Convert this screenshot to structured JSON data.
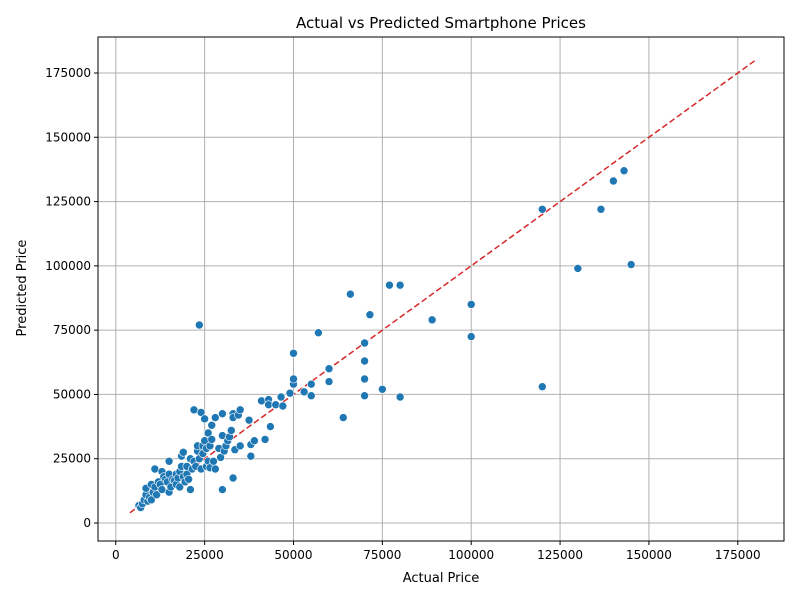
{
  "chart_data": {
    "type": "scatter",
    "title": "Actual vs Predicted Smartphone Prices",
    "xlabel": "Actual Price",
    "ylabel": "Predicted Price",
    "xlim": [
      -5000,
      188000
    ],
    "ylim": [
      -7000,
      189000
    ],
    "xticks": [
      0,
      25000,
      50000,
      75000,
      100000,
      125000,
      150000,
      175000
    ],
    "yticks": [
      0,
      25000,
      50000,
      75000,
      100000,
      125000,
      150000,
      175000
    ],
    "grid": true,
    "point_color": "#1f77b4",
    "reference_line": {
      "x": [
        4000,
        180000
      ],
      "y": [
        4000,
        180000
      ],
      "color": "#d62728",
      "style": "dashed"
    },
    "points": [
      [
        6500,
        6800
      ],
      [
        7000,
        6000
      ],
      [
        7500,
        7500
      ],
      [
        8000,
        9000
      ],
      [
        8500,
        11000
      ],
      [
        8500,
        13500
      ],
      [
        9000,
        8500
      ],
      [
        9500,
        10000
      ],
      [
        10000,
        15000
      ],
      [
        10000,
        9000
      ],
      [
        10500,
        12000
      ],
      [
        11000,
        21000
      ],
      [
        11000,
        14000
      ],
      [
        11500,
        11000
      ],
      [
        12000,
        16000
      ],
      [
        12500,
        15000
      ],
      [
        13000,
        20000
      ],
      [
        13000,
        13000
      ],
      [
        13500,
        18000
      ],
      [
        14000,
        17000
      ],
      [
        14500,
        16000
      ],
      [
        15000,
        24000
      ],
      [
        15000,
        12000
      ],
      [
        15000,
        19000
      ],
      [
        15500,
        14000
      ],
      [
        16000,
        17000
      ],
      [
        16500,
        16500
      ],
      [
        17000,
        19000
      ],
      [
        17000,
        15000
      ],
      [
        17500,
        17500
      ],
      [
        18000,
        20000
      ],
      [
        18000,
        14000
      ],
      [
        18500,
        26000
      ],
      [
        18500,
        22000
      ],
      [
        19000,
        27500
      ],
      [
        19000,
        18000
      ],
      [
        19500,
        16000
      ],
      [
        20000,
        22000
      ],
      [
        20000,
        19000
      ],
      [
        20500,
        17000
      ],
      [
        21000,
        25000
      ],
      [
        21000,
        13000
      ],
      [
        21500,
        21000
      ],
      [
        22000,
        44000
      ],
      [
        22000,
        24000
      ],
      [
        22500,
        22000
      ],
      [
        23000,
        28000
      ],
      [
        23000,
        30000
      ],
      [
        23500,
        77000
      ],
      [
        23500,
        25000
      ],
      [
        24000,
        43000
      ],
      [
        24000,
        21000
      ],
      [
        24500,
        30000
      ],
      [
        24500,
        27000
      ],
      [
        25000,
        40500
      ],
      [
        25000,
        32000
      ],
      [
        25500,
        22000
      ],
      [
        25500,
        29000
      ],
      [
        26000,
        35000
      ],
      [
        26000,
        24000
      ],
      [
        26500,
        30000
      ],
      [
        26500,
        21500
      ],
      [
        27000,
        38000
      ],
      [
        27000,
        32500
      ],
      [
        27500,
        24000
      ],
      [
        28000,
        41000
      ],
      [
        28000,
        21000
      ],
      [
        29000,
        29000
      ],
      [
        29500,
        25500
      ],
      [
        30000,
        42500
      ],
      [
        30000,
        34000
      ],
      [
        30000,
        13000
      ],
      [
        30500,
        28000
      ],
      [
        31000,
        30000
      ],
      [
        31500,
        32000
      ],
      [
        32000,
        33500
      ],
      [
        32500,
        36000
      ],
      [
        33000,
        42500
      ],
      [
        33000,
        41000
      ],
      [
        33000,
        17500
      ],
      [
        33500,
        28500
      ],
      [
        34500,
        42000
      ],
      [
        35000,
        44000
      ],
      [
        35000,
        30000
      ],
      [
        37500,
        40000
      ],
      [
        38000,
        26000
      ],
      [
        38000,
        30500
      ],
      [
        39000,
        32000
      ],
      [
        41000,
        47500
      ],
      [
        42000,
        32500
      ],
      [
        43000,
        48000
      ],
      [
        43000,
        46000
      ],
      [
        43500,
        37500
      ],
      [
        45000,
        46000
      ],
      [
        46500,
        49000
      ],
      [
        47000,
        45500
      ],
      [
        49000,
        50500
      ],
      [
        50000,
        66000
      ],
      [
        50000,
        54000
      ],
      [
        50000,
        56000
      ],
      [
        53000,
        51000
      ],
      [
        55000,
        54000
      ],
      [
        55000,
        49500
      ],
      [
        57000,
        74000
      ],
      [
        60000,
        55000
      ],
      [
        60000,
        60000
      ],
      [
        64000,
        41000
      ],
      [
        66000,
        89000
      ],
      [
        70000,
        70000
      ],
      [
        70000,
        63000
      ],
      [
        70000,
        56000
      ],
      [
        70000,
        49500
      ],
      [
        71500,
        81000
      ],
      [
        75000,
        52000
      ],
      [
        77000,
        92500
      ],
      [
        80000,
        92500
      ],
      [
        80000,
        49000
      ],
      [
        89000,
        79000
      ],
      [
        100000,
        85000
      ],
      [
        100000,
        72500
      ],
      [
        120000,
        122000
      ],
      [
        120000,
        53000
      ],
      [
        130000,
        99000
      ],
      [
        136500,
        122000
      ],
      [
        140000,
        133000
      ],
      [
        143000,
        137000
      ],
      [
        145000,
        100500
      ]
    ]
  }
}
